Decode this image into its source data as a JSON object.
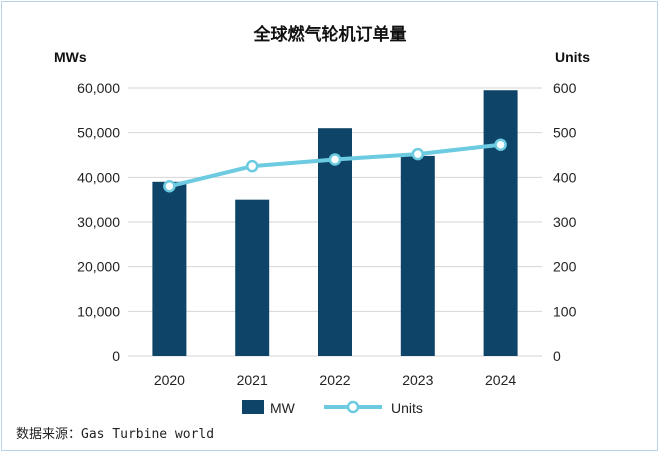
{
  "chart_data": {
    "type": "bar+line",
    "title": "全球燃气轮机订单量",
    "left_axis_label": "MWs",
    "right_axis_label": "Units",
    "categories": [
      "2020",
      "2021",
      "2022",
      "2023",
      "2024"
    ],
    "series": [
      {
        "name": "MW",
        "type": "bar",
        "axis": "left",
        "color": "#0e4468",
        "values": [
          39000,
          35000,
          51000,
          44800,
          59500
        ]
      },
      {
        "name": "Units",
        "type": "line",
        "axis": "right",
        "color": "#6ccbe0",
        "values": [
          380,
          425,
          440,
          452,
          473
        ]
      }
    ],
    "ylim_left": [
      0,
      60000
    ],
    "ylim_right": [
      0,
      600
    ],
    "left_ticks": [
      "0",
      "10,000",
      "20,000",
      "30,000",
      "40,000",
      "50,000",
      "60,000"
    ],
    "right_ticks": [
      "0",
      "100",
      "200",
      "300",
      "400",
      "500",
      "600"
    ],
    "grid": true,
    "legend_position": "bottom"
  },
  "source_text": "数据来源：Gas Turbine world"
}
